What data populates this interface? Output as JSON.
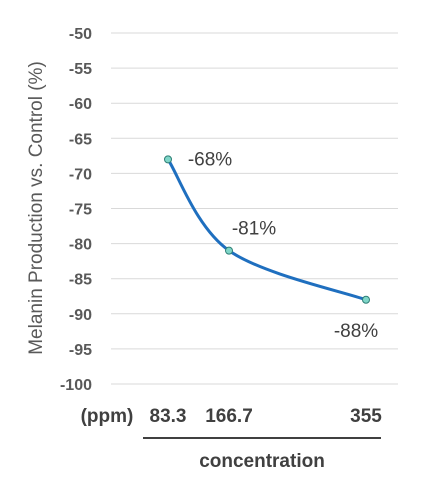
{
  "chart_data": {
    "type": "line",
    "title": "",
    "ylabel": "Melanin Production vs. Control (%)",
    "xlabel": "concentration",
    "x_unit_label": "(ppm)",
    "ylim": [
      -100,
      -50
    ],
    "yticks": [
      -50,
      -55,
      -60,
      -65,
      -70,
      -75,
      -80,
      -85,
      -90,
      -95,
      -100
    ],
    "x_tick_labels": [
      "83.3",
      "166.7",
      "355"
    ],
    "grid": true,
    "legend": "none",
    "line_color": "#1f6fbf",
    "marker_color": "#7fd6c8",
    "series": [
      {
        "x": [
          "83.3",
          "166.7",
          "355"
        ],
        "values": [
          -68,
          -81,
          -88
        ],
        "data_labels": [
          "-68%",
          "-81%",
          "-88%"
        ]
      }
    ]
  }
}
